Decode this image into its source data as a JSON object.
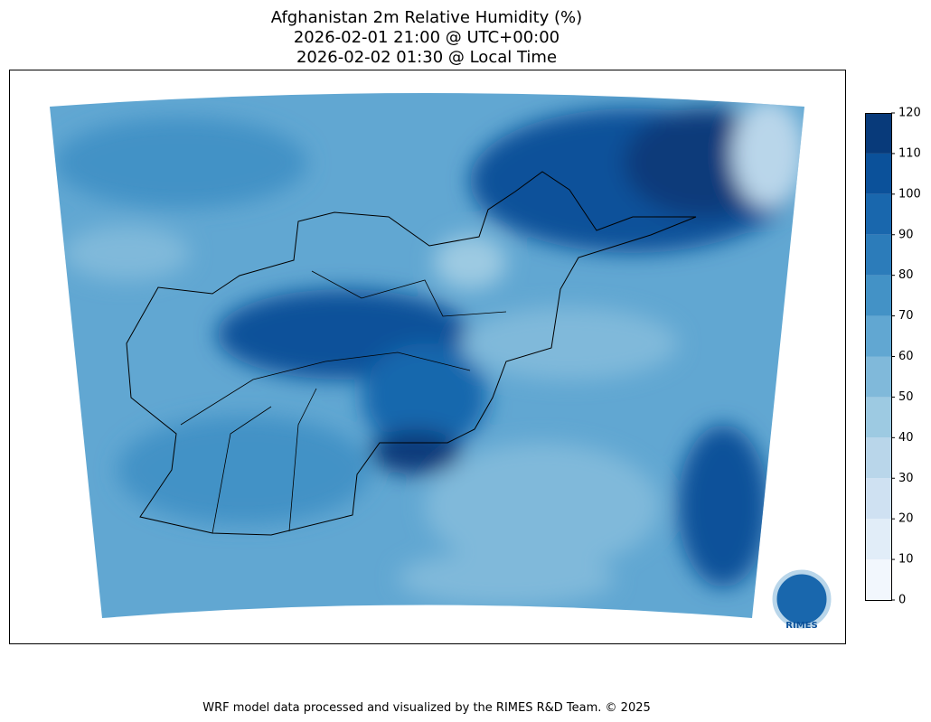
{
  "title": [
    "Afghanistan 2m Relative Humidity (%)",
    "2026-02-01 21:00 @ UTC+00:00",
    "2026-02-02 01:30 @ Local Time"
  ],
  "colorbar": {
    "ticks": [
      0,
      10,
      20,
      30,
      40,
      50,
      60,
      70,
      80,
      90,
      100,
      110,
      120
    ],
    "colors": [
      "#f2f7fd",
      "#e1edf8",
      "#cfe1f2",
      "#b9d6ea",
      "#9dcae2",
      "#80b9da",
      "#61a7d2",
      "#4392c6",
      "#2c7cba",
      "#1967ad",
      "#0b519a",
      "#083a7a"
    ]
  },
  "logo": "RIMES",
  "footer": "WRF model data processed and visualized by the RIMES R&D Team. © 2025"
}
